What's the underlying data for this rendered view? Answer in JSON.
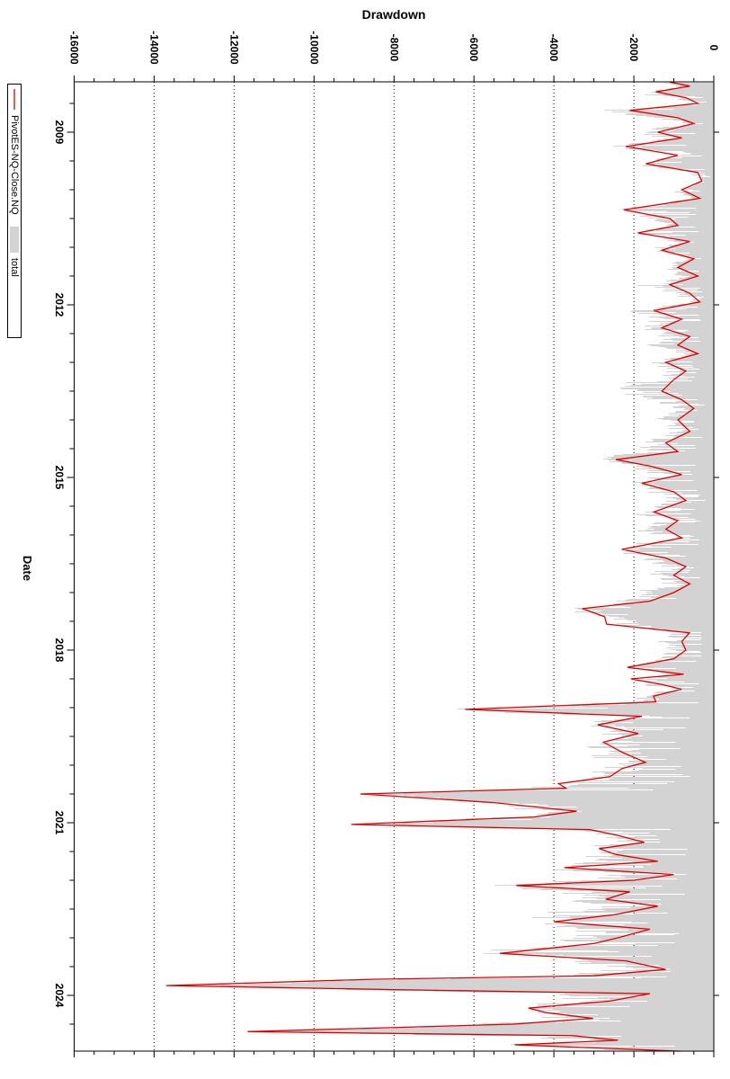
{
  "window": {
    "title": "Drawdown"
  },
  "colors": {
    "strategy_line": "#dd0000",
    "total_fill": "#d3d3d3",
    "axis": "#000000",
    "grid_dot": "#000000",
    "label_text": "#000000",
    "background": "#ffffff"
  },
  "chart_data": {
    "type": "area",
    "orientation": "rotated-90-clockwise",
    "title": "Drawdown",
    "xlabel": "Date",
    "ylabel": "",
    "grid": "dotted-major-value-lines",
    "legend_position": "outside-top-left-rotated",
    "value_axis": {
      "min": -16000,
      "max": 0,
      "major_tick_step": 2000,
      "minor_tick_step": 500,
      "tick_labels": [
        "0",
        "-2000",
        "-4000",
        "-6000",
        "-8000",
        "-10000",
        "-12000",
        "-14000",
        "-16000"
      ]
    },
    "time_axis": {
      "label": "Date",
      "year_range": [
        2008.1,
        2025.0
      ],
      "labeled_year_ticks": [
        2009,
        2012,
        2015,
        2018,
        2021,
        2024
      ],
      "minor_tick_step_years": 0.5
    },
    "legend": [
      {
        "name": "PivotES-NQ-Close.NQ",
        "kind": "line",
        "color": "#dd0000"
      },
      {
        "name": "total",
        "kind": "area",
        "color": "#d3d3d3"
      }
    ],
    "series_names": [
      "PivotES-NQ-Close.NQ",
      "total"
    ],
    "samples_format": [
      "year",
      "PivotES-NQ-Close.NQ drawdown",
      "total drawdown"
    ],
    "samples": [
      [
        2008.13,
        -1100,
        -1200
      ],
      [
        2008.2,
        -600,
        -800
      ],
      [
        2008.3,
        -1450,
        -1800
      ],
      [
        2008.4,
        -700,
        -900
      ],
      [
        2008.5,
        -400,
        -300
      ],
      [
        2008.62,
        -2100,
        -2350
      ],
      [
        2008.75,
        -900,
        -1300
      ],
      [
        2008.85,
        -500,
        -600
      ],
      [
        2009.0,
        -1400,
        -2100
      ],
      [
        2009.1,
        -800,
        -1100
      ],
      [
        2009.25,
        -2200,
        -2300
      ],
      [
        2009.4,
        -900,
        -800
      ],
      [
        2009.55,
        -1700,
        -1800
      ],
      [
        2009.7,
        -400,
        -500
      ],
      [
        2009.85,
        -300,
        -250
      ],
      [
        2010.0,
        -800,
        -1000
      ],
      [
        2010.15,
        -350,
        -500
      ],
      [
        2010.35,
        -2250,
        -2400
      ],
      [
        2010.5,
        -1100,
        -1300
      ],
      [
        2010.62,
        -900,
        -1000
      ],
      [
        2010.75,
        -1900,
        -2000
      ],
      [
        2010.9,
        -600,
        -800
      ],
      [
        2011.05,
        -1300,
        -1500
      ],
      [
        2011.2,
        -500,
        -700
      ],
      [
        2011.35,
        -900,
        -1200
      ],
      [
        2011.5,
        -400,
        -800
      ],
      [
        2011.65,
        -1100,
        -1500
      ],
      [
        2011.8,
        -600,
        -900
      ],
      [
        2011.95,
        -350,
        -500
      ],
      [
        2012.1,
        -1500,
        -1900
      ],
      [
        2012.25,
        -800,
        -1200
      ],
      [
        2012.4,
        -1300,
        -1700
      ],
      [
        2012.55,
        -600,
        -1000
      ],
      [
        2012.7,
        -900,
        -1300
      ],
      [
        2012.85,
        -400,
        -700
      ],
      [
        2013.0,
        -1200,
        -1500
      ],
      [
        2013.15,
        -700,
        -1000
      ],
      [
        2013.3,
        -1000,
        -1600
      ],
      [
        2013.5,
        -1300,
        -2300
      ],
      [
        2013.65,
        -800,
        -1400
      ],
      [
        2013.8,
        -500,
        -800
      ],
      [
        2014.0,
        -900,
        -1200
      ],
      [
        2014.2,
        -600,
        -900
      ],
      [
        2014.4,
        -1200,
        -1600
      ],
      [
        2014.55,
        -900,
        -1900
      ],
      [
        2014.69,
        -2450,
        -2600
      ],
      [
        2014.8,
        -1600,
        -2100
      ],
      [
        2014.95,
        -800,
        -1200
      ],
      [
        2015.1,
        -1800,
        -2000
      ],
      [
        2015.25,
        -1000,
        -1400
      ],
      [
        2015.4,
        -700,
        -900
      ],
      [
        2015.6,
        -1500,
        -1800
      ],
      [
        2015.75,
        -900,
        -1300
      ],
      [
        2015.9,
        -1200,
        -1600
      ],
      [
        2016.05,
        -800,
        -1100
      ],
      [
        2016.25,
        -2300,
        -2600
      ],
      [
        2016.4,
        -1200,
        -1700
      ],
      [
        2016.55,
        -700,
        -1100
      ],
      [
        2016.7,
        -1000,
        -1500
      ],
      [
        2016.85,
        -600,
        -900
      ],
      [
        2017.0,
        -1000,
        -1600
      ],
      [
        2017.15,
        -1600,
        -2200
      ],
      [
        2017.28,
        -3290,
        -3100
      ],
      [
        2017.42,
        -2730,
        -2500
      ],
      [
        2017.55,
        -2680,
        -2300
      ],
      [
        2017.7,
        -610,
        -900
      ],
      [
        2017.85,
        -800,
        -1200
      ],
      [
        2018.0,
        -700,
        -1000
      ],
      [
        2018.15,
        -1000,
        -1400
      ],
      [
        2018.3,
        -2160,
        -2000
      ],
      [
        2018.42,
        -750,
        -900
      ],
      [
        2018.5,
        -2075,
        -1800
      ],
      [
        2018.6,
        -1285,
        -1500
      ],
      [
        2018.68,
        -810,
        -1000
      ],
      [
        2018.8,
        -1510,
        -1700
      ],
      [
        2018.9,
        -1450,
        -1600
      ],
      [
        2019.03,
        -6220,
        -6180
      ],
      [
        2019.15,
        -1800,
        -2400
      ],
      [
        2019.3,
        -2900,
        -2700
      ],
      [
        2019.45,
        -1890,
        -2100
      ],
      [
        2019.6,
        -2760,
        -2500
      ],
      [
        2019.78,
        -2280,
        -2400
      ],
      [
        2019.95,
        -1710,
        -2000
      ],
      [
        2020.06,
        -2300,
        -2500
      ],
      [
        2020.2,
        -2600,
        -2800
      ],
      [
        2020.32,
        -3880,
        -4000
      ],
      [
        2020.4,
        -3700,
        -3900
      ],
      [
        2020.5,
        -8840,
        -8700
      ],
      [
        2020.65,
        -5500,
        -5600
      ],
      [
        2020.8,
        -3430,
        -3600
      ],
      [
        2020.9,
        -4500,
        -4700
      ],
      [
        2021.03,
        -9070,
        -8950
      ],
      [
        2021.12,
        -3090,
        -3300
      ],
      [
        2021.22,
        -2400,
        -2700
      ],
      [
        2021.34,
        -1740,
        -2200
      ],
      [
        2021.45,
        -2870,
        -3100
      ],
      [
        2021.55,
        -2460,
        -2800
      ],
      [
        2021.67,
        -1400,
        -2600
      ],
      [
        2021.78,
        -3740,
        -3900
      ],
      [
        2021.9,
        -1000,
        -2200
      ],
      [
        2022.0,
        -2000,
        -3000
      ],
      [
        2022.09,
        -4940,
        -5000
      ],
      [
        2022.2,
        -2100,
        -3200
      ],
      [
        2022.33,
        -2700,
        -3500
      ],
      [
        2022.45,
        -1400,
        -2800
      ],
      [
        2022.6,
        -2500,
        -3600
      ],
      [
        2022.72,
        -4000,
        -4300
      ],
      [
        2022.85,
        -1600,
        -2900
      ],
      [
        2023.0,
        -2400,
        -3400
      ],
      [
        2023.1,
        -3000,
        -3800
      ],
      [
        2023.27,
        -5350,
        -5400
      ],
      [
        2023.4,
        -2200,
        -3200
      ],
      [
        2023.55,
        -1200,
        -2500
      ],
      [
        2023.66,
        -3000,
        -3500
      ],
      [
        2023.72,
        -8550,
        -8400
      ],
      [
        2023.83,
        -13700,
        -13300
      ],
      [
        2023.9,
        -8000,
        -8500
      ],
      [
        2023.97,
        -1600,
        -4000
      ],
      [
        2024.1,
        -2600,
        -3400
      ],
      [
        2024.22,
        -4640,
        -4200
      ],
      [
        2024.3,
        -4190,
        -3800
      ],
      [
        2024.4,
        -3020,
        -3400
      ],
      [
        2024.5,
        -5000,
        -5500
      ],
      [
        2024.63,
        -11660,
        -11200
      ],
      [
        2024.7,
        -3520,
        -5000
      ],
      [
        2024.78,
        -2400,
        -3500
      ],
      [
        2024.86,
        -4980,
        -4700
      ],
      [
        2024.97,
        -830,
        -1500
      ]
    ]
  }
}
